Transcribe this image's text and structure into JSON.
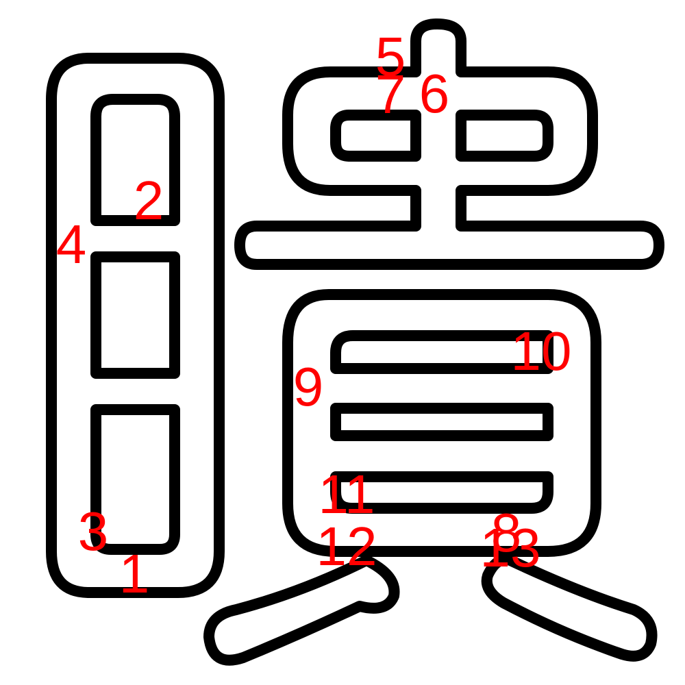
{
  "glyph": {
    "stroke_color": "#000000",
    "fill_color": "#ffffff",
    "label_color": "#ff0000"
  },
  "labels": [
    "1",
    "2",
    "3",
    "4",
    "5",
    "6",
    "7",
    "8",
    "9",
    "10",
    "11",
    "12",
    "13"
  ]
}
